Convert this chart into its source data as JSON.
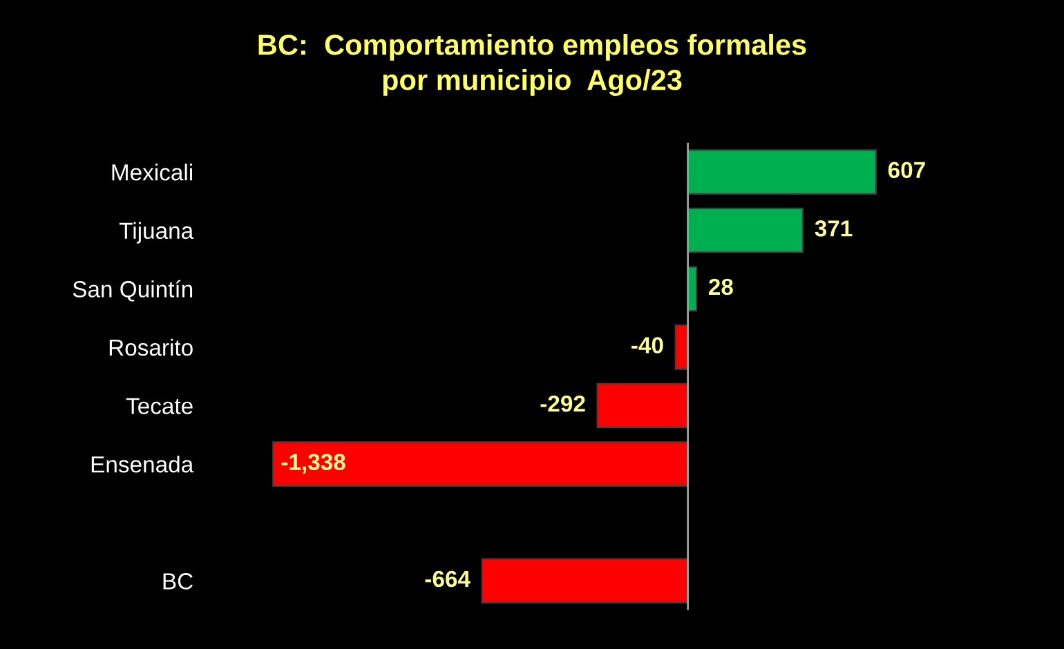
{
  "chart_data": {
    "type": "bar",
    "orientation": "horizontal",
    "title": "BC:  Comportamiento empleos formales\npor municipio  Ago/23",
    "categories": [
      "Mexicali",
      "Tijuana",
      "San Quintín",
      "Rosarito",
      "Tecate",
      "Ensenada",
      null,
      "BC"
    ],
    "values": [
      607,
      371,
      28,
      -40,
      -292,
      -1338,
      null,
      -664
    ],
    "colors": [
      "#00b050",
      "#00b050",
      "#00b050",
      "#ff0000",
      "#ff0000",
      "#ff0000",
      "#ff0000",
      "#ff0000"
    ],
    "value_labels": [
      "607",
      "371",
      "28",
      "-40",
      "-292",
      "-1,338",
      null,
      "-664"
    ],
    "grid": false,
    "legend": false
  }
}
